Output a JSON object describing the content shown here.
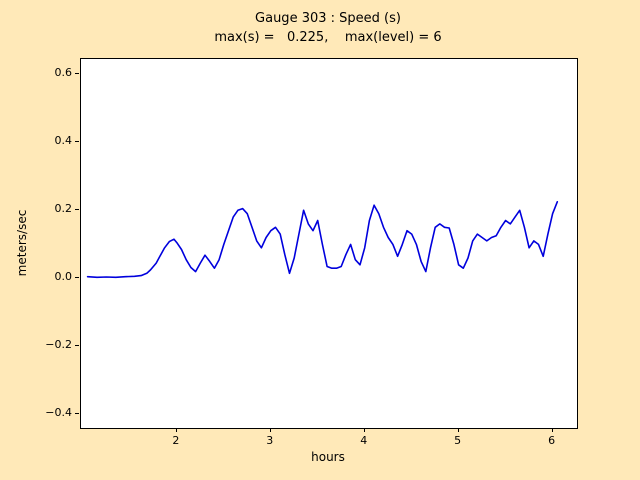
{
  "figure": {
    "bg_color": "#ffe9b8",
    "title_line1": "Gauge 303 : Speed (s)",
    "title_line2": "max(s) =   0.225,    max(level) = 6"
  },
  "chart_data": {
    "type": "line",
    "title": "Gauge 303 : Speed (s)",
    "subtitle": "max(s) = 0.225, max(level) = 6",
    "max_s": 0.225,
    "max_level": 6,
    "xlabel": "hours",
    "ylabel": "meters/sec",
    "xlim": [
      0.98,
      6.26
    ],
    "ylim": [
      -0.44,
      0.645
    ],
    "xticks": [
      2,
      3,
      4,
      5,
      6
    ],
    "xtick_labels": [
      "2",
      "3",
      "4",
      "5",
      "6"
    ],
    "yticks": [
      -0.4,
      -0.2,
      0.0,
      0.2,
      0.4,
      0.6
    ],
    "ytick_labels": [
      "−0.4",
      "−0.2",
      "0.0",
      "0.2",
      "0.4",
      "0.6"
    ],
    "grid": false,
    "legend": "none",
    "series": [
      {
        "name": "speed",
        "color": "#0000dd",
        "points": [
          [
            1.05,
            0.005
          ],
          [
            1.15,
            0.003
          ],
          [
            1.25,
            0.004
          ],
          [
            1.35,
            0.003
          ],
          [
            1.45,
            0.005
          ],
          [
            1.55,
            0.006
          ],
          [
            1.62,
            0.008
          ],
          [
            1.68,
            0.015
          ],
          [
            1.72,
            0.025
          ],
          [
            1.78,
            0.045
          ],
          [
            1.82,
            0.065
          ],
          [
            1.87,
            0.09
          ],
          [
            1.92,
            0.108
          ],
          [
            1.97,
            0.115
          ],
          [
            2.0,
            0.105
          ],
          [
            2.05,
            0.085
          ],
          [
            2.1,
            0.055
          ],
          [
            2.15,
            0.032
          ],
          [
            2.2,
            0.02
          ],
          [
            2.25,
            0.045
          ],
          [
            2.3,
            0.068
          ],
          [
            2.35,
            0.05
          ],
          [
            2.4,
            0.03
          ],
          [
            2.45,
            0.055
          ],
          [
            2.5,
            0.1
          ],
          [
            2.55,
            0.14
          ],
          [
            2.6,
            0.18
          ],
          [
            2.65,
            0.2
          ],
          [
            2.7,
            0.205
          ],
          [
            2.75,
            0.19
          ],
          [
            2.8,
            0.15
          ],
          [
            2.85,
            0.11
          ],
          [
            2.9,
            0.09
          ],
          [
            2.95,
            0.12
          ],
          [
            3.0,
            0.14
          ],
          [
            3.05,
            0.15
          ],
          [
            3.1,
            0.13
          ],
          [
            3.15,
            0.07
          ],
          [
            3.2,
            0.015
          ],
          [
            3.25,
            0.06
          ],
          [
            3.3,
            0.13
          ],
          [
            3.35,
            0.2
          ],
          [
            3.4,
            0.16
          ],
          [
            3.45,
            0.14
          ],
          [
            3.5,
            0.17
          ],
          [
            3.55,
            0.1
          ],
          [
            3.6,
            0.035
          ],
          [
            3.65,
            0.03
          ],
          [
            3.7,
            0.03
          ],
          [
            3.75,
            0.035
          ],
          [
            3.8,
            0.07
          ],
          [
            3.85,
            0.1
          ],
          [
            3.9,
            0.055
          ],
          [
            3.95,
            0.04
          ],
          [
            4.0,
            0.09
          ],
          [
            4.05,
            0.17
          ],
          [
            4.1,
            0.215
          ],
          [
            4.15,
            0.19
          ],
          [
            4.2,
            0.15
          ],
          [
            4.25,
            0.12
          ],
          [
            4.3,
            0.1
          ],
          [
            4.35,
            0.065
          ],
          [
            4.4,
            0.1
          ],
          [
            4.45,
            0.14
          ],
          [
            4.5,
            0.13
          ],
          [
            4.55,
            0.1
          ],
          [
            4.6,
            0.05
          ],
          [
            4.65,
            0.02
          ],
          [
            4.7,
            0.09
          ],
          [
            4.75,
            0.15
          ],
          [
            4.8,
            0.16
          ],
          [
            4.85,
            0.15
          ],
          [
            4.9,
            0.148
          ],
          [
            4.95,
            0.1
          ],
          [
            5.0,
            0.04
          ],
          [
            5.05,
            0.03
          ],
          [
            5.1,
            0.06
          ],
          [
            5.15,
            0.11
          ],
          [
            5.2,
            0.13
          ],
          [
            5.25,
            0.12
          ],
          [
            5.3,
            0.11
          ],
          [
            5.35,
            0.12
          ],
          [
            5.4,
            0.125
          ],
          [
            5.45,
            0.15
          ],
          [
            5.5,
            0.17
          ],
          [
            5.55,
            0.16
          ],
          [
            5.6,
            0.18
          ],
          [
            5.65,
            0.2
          ],
          [
            5.7,
            0.15
          ],
          [
            5.75,
            0.09
          ],
          [
            5.8,
            0.11
          ],
          [
            5.85,
            0.1
          ],
          [
            5.9,
            0.065
          ],
          [
            5.95,
            0.13
          ],
          [
            6.0,
            0.19
          ],
          [
            6.05,
            0.225
          ]
        ]
      }
    ]
  }
}
